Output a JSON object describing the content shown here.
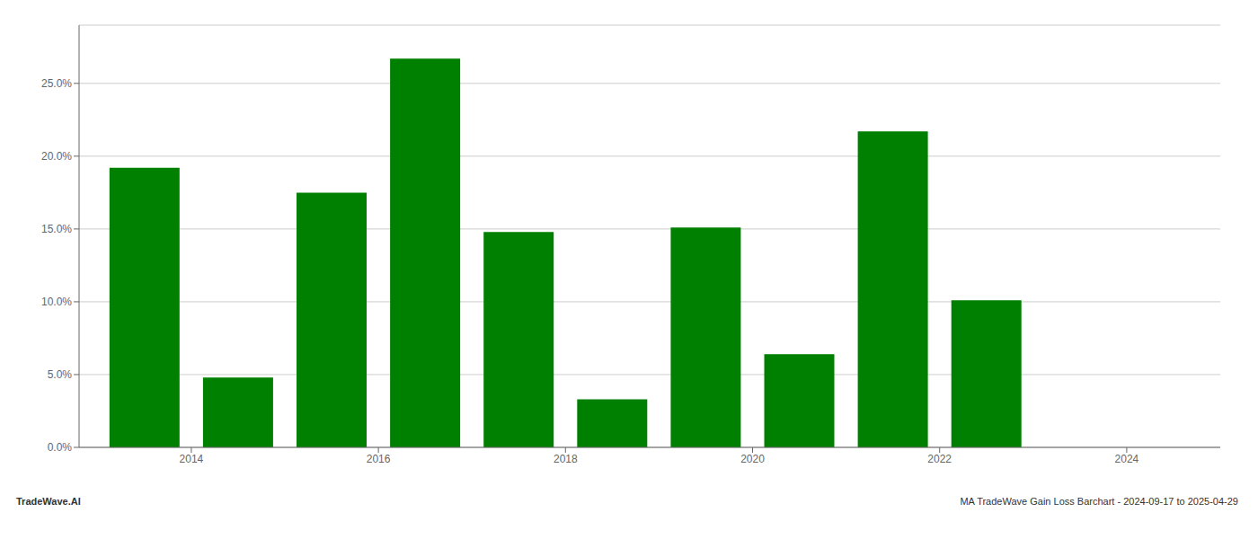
{
  "chart_data": {
    "type": "bar",
    "x": [
      2013.5,
      2014.5,
      2015.5,
      2016.5,
      2017.5,
      2018.5,
      2019.5,
      2020.5,
      2021.5,
      2022.5
    ],
    "values": [
      0.192,
      0.048,
      0.175,
      0.267,
      0.148,
      0.033,
      0.151,
      0.064,
      0.217,
      0.101
    ],
    "color": "#008000",
    "xlim": [
      2012.8,
      2025.0
    ],
    "xticks": [
      2014,
      2016,
      2018,
      2020,
      2022,
      2024
    ],
    "ylim": [
      0,
      0.29
    ],
    "yticks": [
      {
        "value": 0.0,
        "label": "0.0%"
      },
      {
        "value": 0.05,
        "label": "5.0%"
      },
      {
        "value": 0.1,
        "label": "10.0%"
      },
      {
        "value": 0.15,
        "label": "15.0%"
      },
      {
        "value": 0.2,
        "label": "20.0%"
      },
      {
        "value": 0.25,
        "label": "25.0%"
      }
    ],
    "grid": true,
    "annotations": [
      "TradeWave.AI",
      "MA TradeWave Gain Loss Barchart - 2024-09-17 to 2025-04-29"
    ]
  }
}
